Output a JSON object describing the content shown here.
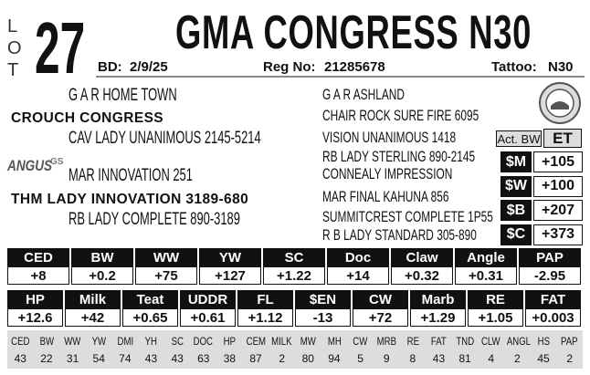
{
  "lot": {
    "letters": [
      "L",
      "O",
      "T"
    ],
    "number": "27"
  },
  "title": "GMA CONGRESS N30",
  "info": {
    "bd_label": "BD:",
    "bd": "2/9/25",
    "reg_label": "Reg No:",
    "reg": "21285678",
    "tattoo_label": "Tattoo:",
    "tattoo": "N30"
  },
  "pedigree": {
    "left": [
      "G A R HOME TOWN",
      "CROUCH CONGRESS",
      "CAV LADY UNANIMOUS 2145-5214",
      "MAR INNOVATION 251",
      "THM LADY INNOVATION 3189-680",
      "RB LADY COMPLETE 890-3189"
    ],
    "right": [
      "G A R ASHLAND",
      "CHAIR ROCK SURE FIRE 6095",
      "VISION UNANIMOUS 1418",
      "RB LADY STERLING 890-2145",
      "CONNEALY IMPRESSION",
      "MAR FINAL KAHUNA 856",
      "SUMMITCREST COMPLETE 1P55",
      "R B LADY STANDARD 305-890"
    ]
  },
  "logo": {
    "text": "ANGUS",
    "suffix": "GS"
  },
  "act_bw": {
    "label": "Act. BW",
    "value": "ET"
  },
  "indexes": [
    {
      "label": "$M",
      "value": "+105"
    },
    {
      "label": "$W",
      "value": "+100"
    },
    {
      "label": "$B",
      "value": "+207"
    },
    {
      "label": "$C",
      "value": "+373"
    }
  ],
  "epd_table_1": {
    "headers": [
      "CED",
      "BW",
      "WW",
      "YW",
      "SC",
      "Doc",
      "Claw",
      "Angle",
      "PAP"
    ],
    "values": [
      "+8",
      "+0.2",
      "+75",
      "+127",
      "+1.22",
      "+14",
      "+0.32",
      "+0.31",
      "-2.95"
    ]
  },
  "epd_table_2": {
    "headers": [
      "HP",
      "Milk",
      "Teat",
      "UDDR",
      "FL",
      "$EN",
      "CW",
      "Marb",
      "RE",
      "FAT"
    ],
    "values": [
      "+12.6",
      "+42",
      "+0.65",
      "+0.61",
      "+1.12",
      "-13",
      "+72",
      "+1.29",
      "+1.05",
      "+0.003"
    ]
  },
  "percentiles": {
    "headers": [
      "CED",
      "BW",
      "WW",
      "YW",
      "DMI",
      "YH",
      "SC",
      "DOC",
      "HP",
      "CEM",
      "MILK",
      "MW",
      "MH",
      "CW",
      "MRB",
      "RE",
      "FAT",
      "TND",
      "CLW",
      "ANGL",
      "HS",
      "PAP"
    ],
    "values": [
      43,
      22,
      31,
      54,
      74,
      43,
      43,
      63,
      38,
      87,
      2,
      80,
      94,
      5,
      9,
      8,
      43,
      81,
      4,
      2,
      45,
      2
    ]
  }
}
